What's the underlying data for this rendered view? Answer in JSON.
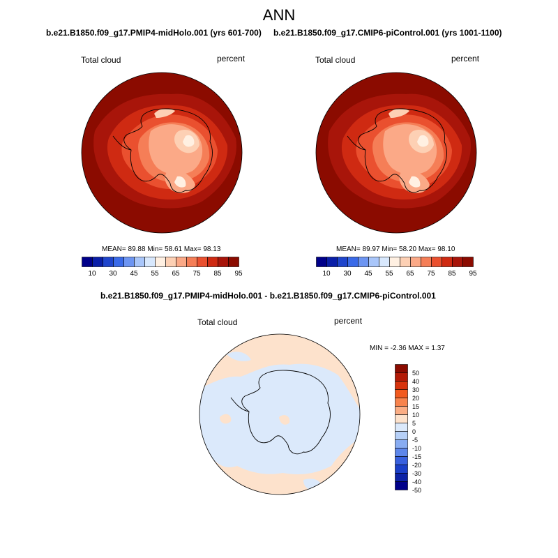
{
  "figure": {
    "season_title": "ANN"
  },
  "panel_left": {
    "case_title": "b.e21.B1850.f09_g17.PMIP4-midHolo.001 (yrs 601-700)",
    "variable_label": "Total cloud",
    "units_label": "percent",
    "stats_text": "MEAN=  89.88  Min=  58.61  Max=  98.13",
    "colorbar_ticks": [
      "10",
      "30",
      "45",
      "55",
      "65",
      "75",
      "85",
      "95"
    ]
  },
  "panel_right": {
    "case_title": "b.e21.B1850.f09_g17.CMIP6-piControl.001 (yrs 1001-1100)",
    "variable_label": "Total cloud",
    "units_label": "percent",
    "stats_text": "MEAN=  89.97  Min=  58.20  Max=  98.10",
    "colorbar_ticks": [
      "10",
      "30",
      "45",
      "55",
      "65",
      "75",
      "85",
      "95"
    ]
  },
  "panel_diff": {
    "case_title": "b.e21.B1850.f09_g17.PMIP4-midHolo.001 - b.e21.B1850.f09_g17.CMIP6-piControl.001",
    "variable_label": "Total cloud",
    "units_label": "percent",
    "stats_text": "MIN =  -2.36 MAX =   1.37",
    "colorbar_labels": [
      "50",
      "40",
      "30",
      "20",
      "15",
      "10",
      "5",
      "0",
      "-5",
      "-10",
      "-15",
      "-20",
      "-30",
      "-40",
      "-50"
    ]
  },
  "colors": {
    "abs_scale": [
      "#00008a",
      "#0a1fa8",
      "#1f45cc",
      "#3a6ae8",
      "#6d95f2",
      "#a9c6fa",
      "#d8e8fd",
      "#fff0e2",
      "#fdd0b4",
      "#fba987",
      "#f57e57",
      "#ea502f",
      "#cf2a12",
      "#a8150a",
      "#8b0b00"
    ],
    "diff_scale": [
      "#8b0b00",
      "#b31a06",
      "#d7330c",
      "#f25a1e",
      "#f8834c",
      "#fbad84",
      "#fde2cc",
      "#dbe9fb",
      "#b6d0f8",
      "#88acf2",
      "#5d86ea",
      "#3860de",
      "#1a3fc8",
      "#0c22a6",
      "#00008a"
    ],
    "ocean_abs": "#8b0b00",
    "diff_positive": "#fde2cc",
    "diff_negative": "#dbe9fb"
  }
}
